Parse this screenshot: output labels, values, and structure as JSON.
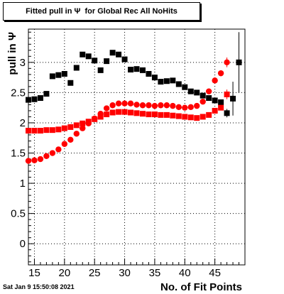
{
  "header": {
    "title": "Fitted pull in Ψ  for Global Rec All NoHits"
  },
  "footer": {
    "timestamp": "Sat Jan  9 15:50:08 2021"
  },
  "chart_data": {
    "type": "scatter",
    "title": "Fitted pull in Ψ  for Global Rec All NoHits",
    "xlabel": "No. of Fit Points",
    "ylabel": "pull in  Ψ",
    "xlim": [
      14,
      50
    ],
    "ylim": [
      -0.35,
      3.55
    ],
    "x_ticks": [
      15,
      20,
      25,
      30,
      35,
      40,
      45
    ],
    "y_ticks": [
      0,
      0.5,
      1,
      1.5,
      2,
      2.5,
      3
    ],
    "x_tick_labels": [
      "15",
      "20",
      "25",
      "30",
      "35",
      "40",
      "45"
    ],
    "y_tick_labels": [
      "0",
      "0.5",
      "1",
      "1.5",
      "2",
      "2.5",
      "3"
    ],
    "grid": true,
    "series": [
      {
        "color": "#000000",
        "marker": "square",
        "x": [
          14,
          15,
          16,
          17,
          18,
          19,
          20,
          21,
          22,
          23,
          24,
          25,
          26,
          27,
          28,
          29,
          30,
          31,
          32,
          33,
          34,
          35,
          36,
          37,
          38,
          39,
          40,
          41,
          42,
          43,
          44,
          45,
          46,
          47,
          48,
          49
        ],
        "y": [
          2.38,
          2.39,
          2.41,
          2.48,
          2.77,
          2.79,
          2.81,
          2.66,
          2.91,
          3.13,
          3.1,
          3.03,
          2.87,
          3.02,
          3.16,
          3.13,
          3.05,
          2.88,
          2.89,
          2.87,
          2.81,
          2.75,
          2.68,
          2.69,
          2.7,
          2.64,
          2.59,
          2.52,
          2.5,
          2.45,
          2.41,
          2.37,
          2.34,
          2.16,
          2.4,
          3.0
        ],
        "err": [
          0,
          0,
          0,
          0,
          0,
          0,
          0,
          0,
          0,
          0,
          0,
          0,
          0,
          0,
          0,
          0,
          0,
          0,
          0,
          0,
          0,
          0,
          0,
          0,
          0,
          0,
          0,
          0,
          0,
          0,
          0,
          0,
          0.04,
          0.07,
          0.28,
          0.5
        ]
      },
      {
        "color": "#ff0000",
        "marker": "circle",
        "x": [
          14,
          15,
          16,
          17,
          18,
          19,
          20,
          21,
          22,
          23,
          24,
          25,
          26,
          27,
          28,
          29,
          30,
          31,
          32,
          33,
          34,
          35,
          36,
          37,
          38,
          39,
          40,
          41,
          42,
          43,
          44,
          45,
          46,
          47
        ],
        "y": [
          1.37,
          1.38,
          1.4,
          1.45,
          1.5,
          1.56,
          1.65,
          1.72,
          1.82,
          1.91,
          1.99,
          2.07,
          2.15,
          2.24,
          2.29,
          2.32,
          2.32,
          2.32,
          2.3,
          2.29,
          2.29,
          2.28,
          2.29,
          2.29,
          2.28,
          2.26,
          2.25,
          2.26,
          2.28,
          2.35,
          2.52,
          2.7,
          2.82,
          3.0
        ],
        "err": [
          0,
          0,
          0,
          0,
          0,
          0,
          0,
          0,
          0,
          0,
          0,
          0,
          0,
          0,
          0,
          0,
          0,
          0,
          0,
          0,
          0,
          0,
          0,
          0,
          0,
          0,
          0,
          0,
          0,
          0,
          0.03,
          0.03,
          0.05,
          0.08
        ]
      },
      {
        "color": "#ff0000",
        "marker": "square",
        "x": [
          14,
          15,
          16,
          17,
          18,
          19,
          20,
          21,
          22,
          23,
          24,
          25,
          26,
          27,
          28,
          29,
          30,
          31,
          32,
          33,
          34,
          35,
          36,
          37,
          38,
          39,
          40,
          41,
          42,
          43,
          44,
          45,
          46,
          47
        ],
        "y": [
          1.87,
          1.87,
          1.87,
          1.88,
          1.88,
          1.89,
          1.91,
          1.93,
          1.96,
          1.99,
          2.02,
          2.06,
          2.1,
          2.14,
          2.17,
          2.18,
          2.18,
          2.17,
          2.16,
          2.15,
          2.14,
          2.14,
          2.13,
          2.13,
          2.12,
          2.11,
          2.1,
          2.09,
          2.08,
          2.1,
          2.13,
          2.2,
          2.25,
          2.47
        ],
        "err": [
          0,
          0,
          0,
          0,
          0,
          0,
          0,
          0,
          0,
          0,
          0,
          0,
          0,
          0,
          0,
          0,
          0,
          0,
          0,
          0,
          0,
          0,
          0,
          0,
          0,
          0,
          0,
          0,
          0,
          0,
          0,
          0,
          0.04,
          0.08
        ]
      }
    ]
  }
}
